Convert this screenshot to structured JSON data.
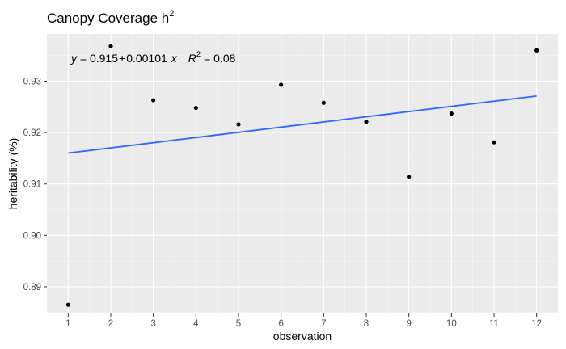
{
  "chart_data": {
    "type": "scatter",
    "title": "Canopy Coverage h",
    "title_superscript": "2",
    "xlabel": "observation",
    "ylabel": "heritability (%)",
    "x": [
      1,
      2,
      3,
      4,
      5,
      6,
      7,
      8,
      9,
      10,
      11,
      12
    ],
    "y": [
      0.8865,
      0.9368,
      0.9263,
      0.9248,
      0.9216,
      0.9293,
      0.9258,
      0.9221,
      0.9114,
      0.9237,
      0.9181,
      0.936
    ],
    "xlim": [
      0.5,
      12.5
    ],
    "ylim": [
      0.8848,
      0.9392
    ],
    "x_ticks": [
      1,
      2,
      3,
      4,
      5,
      6,
      7,
      8,
      9,
      10,
      11,
      12
    ],
    "y_ticks": [
      0.89,
      0.9,
      0.91,
      0.92,
      0.93
    ],
    "y_tick_labels": [
      "0.89",
      "0.90",
      "0.91",
      "0.92",
      "0.93"
    ],
    "trend_line": {
      "intercept": 0.915,
      "slope": 0.00101,
      "color": "#3366ff"
    },
    "annotation": {
      "eq_y": "y",
      "eq_equals": " = 0.915",
      "eq_plus": "+",
      "eq_slope": "0.00101",
      "eq_x": "x",
      "eq_R": "R",
      "eq_R_sup": "2",
      "eq_R_value": " = 0.08"
    },
    "grid": true,
    "panel_color": "#ebebeb",
    "point_color": "#000000"
  }
}
